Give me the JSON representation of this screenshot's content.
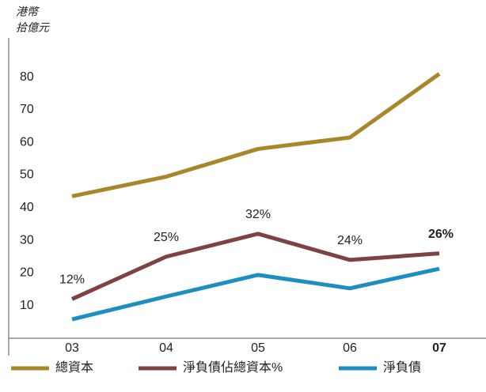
{
  "chart_data": {
    "type": "line",
    "y_label": [
      "港幣",
      "拾億元"
    ],
    "categories": [
      "03",
      "04",
      "05",
      "06",
      "07"
    ],
    "ylim": [
      0,
      92
    ],
    "yticks": [
      10,
      20,
      30,
      40,
      50,
      60,
      70,
      80
    ],
    "grid": false,
    "legend": "bottom",
    "series": [
      {
        "name": "總資本",
        "color": "#a8862a",
        "values": [
          43.5,
          49.5,
          58,
          61.5,
          81
        ]
      },
      {
        "name": "淨負債佔總資本%",
        "color": "#7e4242",
        "values": [
          12,
          25,
          32,
          24,
          26
        ],
        "value_labels": [
          "12%",
          "25%",
          "32%",
          "24%",
          "26%"
        ]
      },
      {
        "name": "淨負債",
        "color": "#1d8ec0",
        "values": [
          5.8,
          12.8,
          19.4,
          15.3,
          21.3
        ]
      }
    ]
  }
}
